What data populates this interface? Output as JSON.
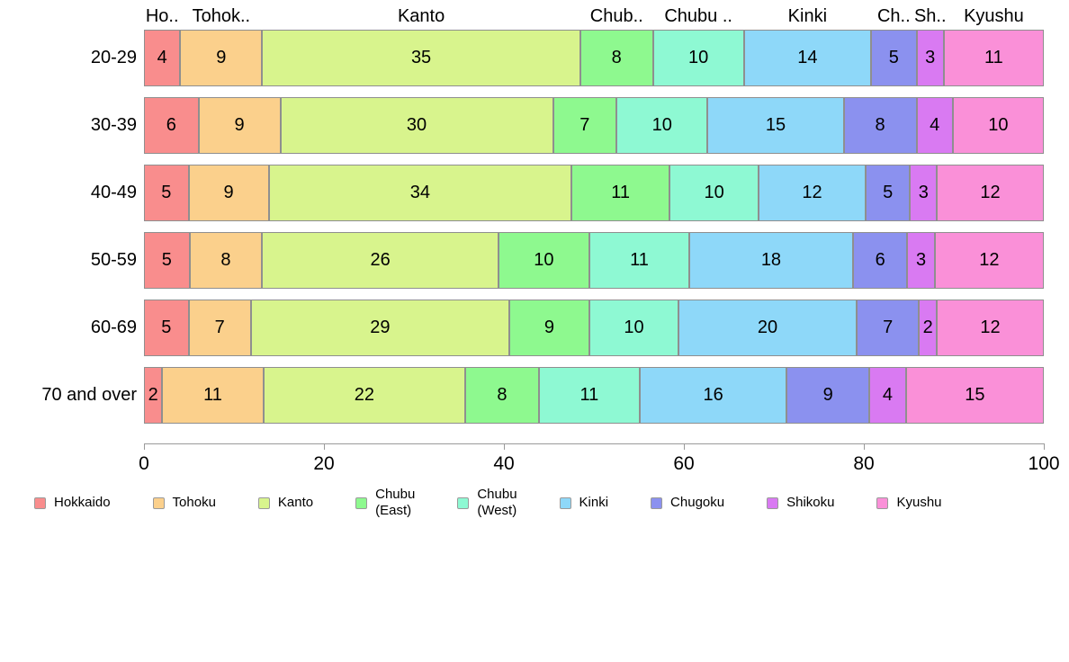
{
  "chart_data": {
    "type": "bar",
    "orientation": "horizontal",
    "stacked": true,
    "title": "",
    "xlabel": "",
    "ylabel": "",
    "xlim": [
      0,
      100
    ],
    "x_ticks": [
      0,
      20,
      40,
      60,
      80,
      100
    ],
    "grid": false,
    "legend_position": "bottom",
    "categories": [
      "20-29",
      "30-39",
      "40-49",
      "50-59",
      "60-69",
      "70 and over"
    ],
    "column_headers": [
      "Ho..",
      "Tohok..",
      "Kanto",
      "Chub..",
      "Chubu ..",
      "Kinki",
      "Ch..",
      "Sh..",
      "Kyushu"
    ],
    "series": [
      {
        "name": "Hokkaido",
        "legend_label": "Hokkaido",
        "color": "#f98d8d",
        "values": [
          4,
          6,
          5,
          5,
          5,
          2
        ]
      },
      {
        "name": "Tohoku",
        "legend_label": "Tohoku",
        "color": "#fbd08c",
        "values": [
          9,
          9,
          9,
          8,
          7,
          11
        ]
      },
      {
        "name": "Kanto",
        "legend_label": "Kanto",
        "color": "#d8f48d",
        "values": [
          35,
          30,
          34,
          26,
          29,
          22
        ]
      },
      {
        "name": "Chubu (East)",
        "legend_label": "Chubu\n(East)",
        "color": "#8ef98f",
        "values": [
          8,
          7,
          11,
          10,
          9,
          8
        ]
      },
      {
        "name": "Chubu (West)",
        "legend_label": "Chubu\n(West)",
        "color": "#8ef9d3",
        "values": [
          10,
          10,
          10,
          11,
          10,
          11
        ]
      },
      {
        "name": "Kinki",
        "legend_label": "Kinki",
        "color": "#8ed8f9",
        "values": [
          14,
          15,
          12,
          18,
          20,
          16
        ]
      },
      {
        "name": "Chugoku",
        "legend_label": "Chugoku",
        "color": "#8b91ef",
        "values": [
          5,
          8,
          5,
          6,
          7,
          9
        ]
      },
      {
        "name": "Shikoku",
        "legend_label": "Shikoku",
        "color": "#d97af2",
        "values": [
          3,
          4,
          3,
          3,
          2,
          4
        ]
      },
      {
        "name": "Kyushu",
        "legend_label": "Kyushu",
        "color": "#fa90d8",
        "values": [
          11,
          10,
          12,
          12,
          12,
          15
        ]
      }
    ]
  },
  "layout_colors": {
    "segment_border": "#8f8f8f",
    "axis": "#9a9a9a",
    "text": "#000000",
    "background": "#ffffff"
  }
}
